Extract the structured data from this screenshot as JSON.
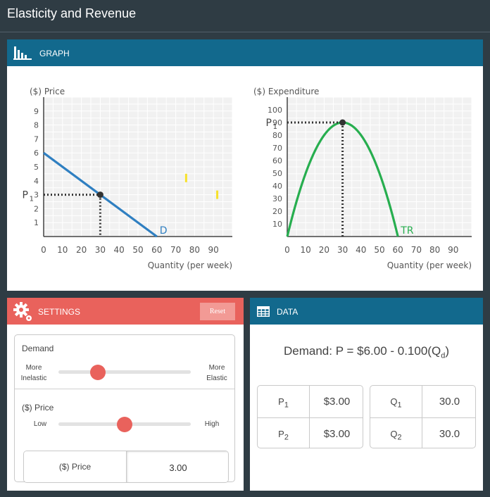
{
  "app": {
    "title": "Elasticity and Revenue"
  },
  "graph_panel": {
    "title": "GRAPH",
    "icon": "bar-chart-icon"
  },
  "chart_data": [
    {
      "type": "line",
      "ylabel": "($) Price",
      "xlabel": "Quantity (per week)",
      "xlim": [
        0,
        100
      ],
      "ylim": [
        0,
        10
      ],
      "x_ticks": [
        0,
        10,
        20,
        30,
        40,
        50,
        60,
        70,
        80,
        90
      ],
      "y_ticks": [
        1,
        2,
        3,
        4,
        5,
        6,
        7,
        8,
        9
      ],
      "series": [
        {
          "name": "D",
          "x": [
            0,
            60
          ],
          "y": [
            6,
            0
          ],
          "color": "#2f7fc1"
        }
      ],
      "point": {
        "x": 30,
        "y": 3,
        "label": "P",
        "label_sub": "1"
      },
      "markers": [
        {
          "x": 75.5,
          "y": 4.2
        },
        {
          "x": 92,
          "y": 3
        }
      ],
      "marker_color": "#f7e12b",
      "grid": true
    },
    {
      "type": "line",
      "ylabel": "($) Expenditure",
      "xlabel": "Quantity (per week)",
      "xlim": [
        0,
        100
      ],
      "ylim": [
        0,
        110
      ],
      "x_ticks": [
        0,
        10,
        20,
        30,
        40,
        50,
        60,
        70,
        80,
        90
      ],
      "y_ticks": [
        10,
        20,
        30,
        40,
        50,
        60,
        70,
        80,
        90,
        100
      ],
      "series": [
        {
          "name": "TR",
          "formula": "6x - 0.1x^2",
          "x_range": [
            0,
            60
          ],
          "color": "#27ae4f"
        }
      ],
      "point": {
        "x": 30,
        "y": 90,
        "label": "P",
        "label_sub": "1"
      },
      "grid": true
    }
  ],
  "settings": {
    "title": "SETTINGS",
    "icon": "gear-icon",
    "reset_label": "Reset",
    "demand_label": "Demand",
    "demand_low_line1": "More",
    "demand_low_line2": "Inelastic",
    "demand_high_line1": "More",
    "demand_high_line2": "Elastic",
    "demand_slider": 0.3,
    "price_label": "($) Price",
    "price_low": "Low",
    "price_high": "High",
    "price_slider": 0.5,
    "price_input_label": "($) Price",
    "price_input_value": "3.00"
  },
  "data": {
    "title": "DATA",
    "icon": "table-icon",
    "equation_prefix": "Demand: P = $6.00 - 0.100(Q",
    "equation_sub": "d",
    "equation_suffix": ")",
    "p1_label": "P",
    "p1_sub": "1",
    "p1_value": "$3.00",
    "p2_label": "P",
    "p2_sub": "2",
    "p2_value": "$3.00",
    "q1_label": "Q",
    "q1_sub": "1",
    "q1_value": "30.0",
    "q2_label": "Q",
    "q2_sub": "2",
    "q2_value": "30.0"
  }
}
